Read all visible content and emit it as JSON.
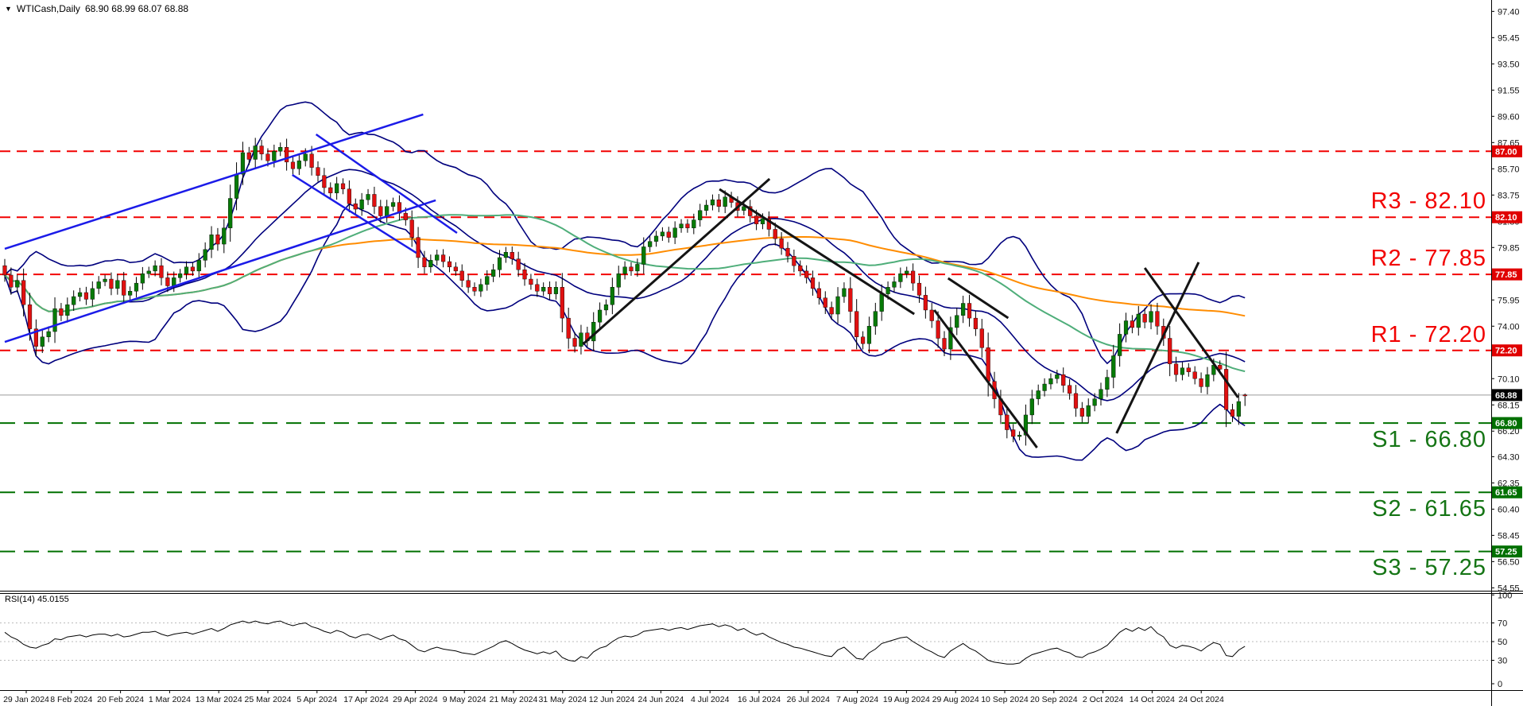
{
  "window": {
    "symbol_label": "WTICash,Daily",
    "ohlc_label": "68.90 68.99 68.07 68.88",
    "dropdown_icon": "triangle-down"
  },
  "colors": {
    "background": "#ffffff",
    "candle_up": "#077a07",
    "candle_down": "#e01010",
    "wick": "#000000",
    "bollinger": "#00007d",
    "sma_fast_green": "#4fae7a",
    "sma_slow_orange": "#ff8c00",
    "blue_trendline": "#1b1be8",
    "black_pattern": "#141414",
    "resistance_red": "#f20000",
    "support_green": "#007000",
    "current_price_gray": "#9a9a9a",
    "axis_text": "#111111",
    "box_red": "#e00000",
    "box_green": "#007000",
    "box_black": "#000000",
    "rsi_line": "#000000",
    "rsi_grid": "#bbbbbb"
  },
  "labels": {
    "r3": "R3 - 82.10",
    "r2": "R2 - 77.85",
    "r1": "R1 - 72.20",
    "s1": "S1 - 66.80",
    "s2": "S2 - 61.65",
    "s3": "S3 - 57.25",
    "rsi": "RSI(14) 45.0155"
  },
  "chart_data": {
    "type": "candlestick+rsi",
    "symbol": "WTICash",
    "timeframe": "Daily",
    "last_ohlc": {
      "open": 68.9,
      "high": 68.99,
      "low": 68.07,
      "close": 68.88
    },
    "ylim": [
      54.2,
      98.25
    ],
    "grid": false,
    "x_dates": [
      "29 Jan 2024",
      "8 Feb 2024",
      "20 Feb 2024",
      "1 Mar 2024",
      "13 Mar 2024",
      "25 Mar 2024",
      "5 Apr 2024",
      "17 Apr 2024",
      "29 Apr 2024",
      "9 May 2024",
      "21 May 2024",
      "31 May 2024",
      "12 Jun 2024",
      "24 Jun 2024",
      "4 Jul 2024",
      "16 Jul 2024",
      "26 Jul 2024",
      "7 Aug 2024",
      "19 Aug 2024",
      "29 Aug 2024",
      "10 Sep 2024",
      "20 Sep 2024",
      "2 Oct 2024",
      "14 Oct 2024",
      "24 Oct 2024"
    ],
    "y_ticks": [
      "97.40",
      "95.45",
      "93.50",
      "91.55",
      "89.60",
      "87.65",
      "85.70",
      "83.75",
      "81.80",
      "79.85",
      "75.95",
      "74.00",
      "70.10",
      "68.15",
      "66.20",
      "64.30",
      "62.35",
      "60.40",
      "58.45",
      "56.50",
      "54.55"
    ],
    "axis_boxes": [
      {
        "text": "87.00",
        "price": 87.0,
        "bg": "#e00000"
      },
      {
        "text": "82.10",
        "price": 82.1,
        "bg": "#e00000"
      },
      {
        "text": "77.85",
        "price": 77.85,
        "bg": "#e00000"
      },
      {
        "text": "72.20",
        "price": 72.2,
        "bg": "#e00000"
      },
      {
        "text": "68.88",
        "price": 68.88,
        "bg": "#000000"
      },
      {
        "text": "66.80",
        "price": 66.8,
        "bg": "#007000"
      },
      {
        "text": "61.65",
        "price": 61.65,
        "bg": "#007000"
      },
      {
        "text": "57.25",
        "price": 57.25,
        "bg": "#007000"
      }
    ],
    "levels": {
      "resistance": [
        {
          "name": "R3",
          "price": 82.1
        },
        {
          "name": "R2",
          "price": 77.85
        },
        {
          "name": "R1",
          "price": 72.2
        },
        {
          "name": "upper",
          "price": 87.0
        }
      ],
      "support": [
        {
          "name": "S1",
          "price": 66.8
        },
        {
          "name": "S2",
          "price": 61.65
        },
        {
          "name": "S3",
          "price": 57.25
        }
      ],
      "current_price": 68.88
    },
    "indicators": {
      "bollinger": {
        "period": 20,
        "deviation": 2
      },
      "sma_fast": {
        "period": 50
      },
      "sma_slow": {
        "period": 100
      },
      "rsi": {
        "period": 14,
        "current": 45.0155,
        "levels": [
          70,
          50,
          30
        ],
        "scale": [
          100,
          70,
          50,
          30,
          0
        ]
      }
    },
    "closes": [
      77.8,
      76.9,
      77.4,
      75.6,
      73.8,
      72.5,
      73.2,
      73.6,
      75.3,
      74.8,
      75.6,
      76.2,
      76.5,
      76.0,
      76.8,
      77.3,
      77.5,
      76.8,
      77.4,
      76.3,
      76.6,
      77.2,
      77.9,
      78.1,
      78.5,
      77.6,
      77.0,
      77.6,
      77.9,
      78.4,
      78.1,
      78.9,
      79.7,
      80.8,
      80.1,
      81.3,
      83.5,
      85.3,
      86.9,
      86.4,
      87.4,
      86.8,
      86.3,
      87.0,
      87.3,
      86.2,
      85.7,
      86.3,
      86.8,
      85.8,
      85.2,
      84.3,
      83.9,
      84.6,
      84.2,
      83.1,
      82.7,
      83.4,
      83.8,
      82.9,
      82.2,
      82.9,
      83.2,
      82.4,
      81.9,
      80.6,
      79.1,
      78.4,
      78.9,
      79.3,
      78.8,
      78.4,
      78.1,
      77.4,
      76.9,
      76.6,
      77.1,
      77.7,
      78.2,
      79.1,
      79.5,
      79.0,
      78.2,
      77.5,
      77.1,
      76.6,
      76.9,
      76.4,
      76.9,
      74.6,
      73.1,
      72.5,
      73.5,
      72.9,
      74.3,
      75.2,
      75.6,
      76.9,
      77.9,
      78.4,
      78.1,
      78.6,
      79.9,
      80.3,
      80.7,
      81.0,
      80.6,
      81.3,
      81.6,
      81.3,
      81.9,
      82.6,
      83.0,
      83.4,
      82.9,
      83.6,
      83.2,
      82.6,
      82.9,
      82.2,
      81.6,
      82.0,
      81.2,
      80.5,
      79.8,
      79.2,
      78.5,
      78.1,
      77.6,
      76.8,
      76.1,
      75.4,
      74.9,
      76.2,
      76.8,
      75.1,
      73.2,
      72.7,
      74.0,
      75.1,
      76.4,
      76.9,
      77.3,
      77.9,
      78.1,
      77.2,
      76.3,
      75.2,
      74.4,
      73.1,
      72.3,
      73.9,
      74.8,
      75.7,
      74.6,
      73.8,
      72.4,
      69.9,
      68.6,
      67.4,
      66.3,
      65.8,
      65.9,
      67.4,
      68.6,
      69.2,
      69.7,
      70.1,
      70.4,
      69.6,
      69.0,
      67.9,
      67.3,
      68.1,
      68.6,
      69.3,
      70.2,
      71.8,
      73.4,
      74.4,
      73.9,
      74.9,
      74.3,
      75.1,
      74.0,
      73.1,
      71.2,
      70.4,
      70.9,
      70.6,
      70.1,
      69.5,
      70.4,
      71.1,
      70.8,
      67.8,
      67.3,
      68.4,
      68.88
    ],
    "rsi_values": [
      60,
      55,
      52,
      47,
      44,
      43,
      46,
      48,
      53,
      52,
      55,
      56,
      57,
      55,
      57,
      58,
      58,
      56,
      58,
      55,
      56,
      58,
      60,
      60,
      61,
      58,
      56,
      58,
      59,
      60,
      58,
      60,
      62,
      64,
      61,
      64,
      68,
      70,
      72,
      70,
      72,
      70,
      69,
      71,
      72,
      69,
      67,
      69,
      70,
      66,
      64,
      61,
      59,
      62,
      60,
      56,
      54,
      57,
      58,
      55,
      52,
      55,
      57,
      53,
      51,
      46,
      41,
      39,
      42,
      44,
      42,
      41,
      40,
      38,
      37,
      36,
      39,
      42,
      45,
      49,
      51,
      48,
      44,
      41,
      39,
      37,
      39,
      37,
      40,
      33,
      30,
      29,
      34,
      32,
      39,
      43,
      45,
      50,
      54,
      56,
      55,
      57,
      61,
      62,
      63,
      64,
      62,
      64,
      65,
      63,
      65,
      67,
      68,
      69,
      66,
      68,
      66,
      62,
      64,
      60,
      57,
      59,
      55,
      52,
      49,
      47,
      44,
      43,
      41,
      39,
      37,
      35,
      34,
      41,
      44,
      38,
      32,
      31,
      38,
      42,
      48,
      50,
      52,
      54,
      55,
      50,
      46,
      42,
      39,
      35,
      33,
      40,
      44,
      48,
      43,
      40,
      35,
      30,
      28,
      27,
      26,
      26,
      27,
      32,
      36,
      38,
      40,
      42,
      43,
      40,
      38,
      34,
      33,
      37,
      39,
      42,
      46,
      53,
      60,
      64,
      61,
      65,
      62,
      66,
      59,
      55,
      46,
      43,
      46,
      45,
      43,
      40,
      45,
      49,
      47,
      35,
      34,
      41,
      45.0155
    ],
    "blue_trendlines": [
      {
        "i1": 0,
        "p1": 79.75,
        "i2": 66.8,
        "p2": 89.74
      },
      {
        "i1": 0,
        "p1": 72.83,
        "i2": 68.8,
        "p2": 83.36
      },
      {
        "i1": 49.7,
        "p1": 88.26,
        "i2": 72.2,
        "p2": 80.93
      },
      {
        "i1": 45.9,
        "p1": 85.25,
        "i2": 65.7,
        "p2": 79.45
      }
    ],
    "black_pattern_lines": [
      {
        "i1": 92.3,
        "p1": 72.66,
        "i2": 122.1,
        "p2": 84.95
      },
      {
        "i1": 114.1,
        "p1": 84.18,
        "i2": 145.2,
        "p2": 74.9
      },
      {
        "i1": 150.6,
        "p1": 77.56,
        "i2": 160.2,
        "p2": 74.61
      },
      {
        "i1": 148.4,
        "p1": 75.2,
        "i2": 164.8,
        "p2": 64.97
      },
      {
        "i1": 177.5,
        "p1": 66.04,
        "i2": 190.6,
        "p2": 78.75
      },
      {
        "i1": 182.0,
        "p1": 78.33,
        "i2": 196.9,
        "p2": 68.7
      }
    ]
  }
}
